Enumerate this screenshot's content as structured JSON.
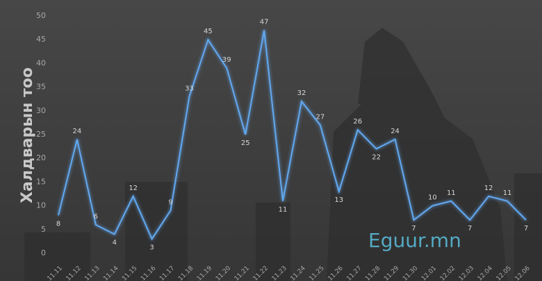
{
  "chart_data": {
    "type": "line",
    "y_label": "Халдварын тоо",
    "categories": [
      "11.11",
      "11.12",
      "11.13",
      "11.14",
      "11.15",
      "11.16",
      "11.17",
      "11.18",
      "11.19",
      "11.20",
      "11.21",
      "11.22",
      "11.23",
      "11.24",
      "11.25",
      "11.26",
      "11.27",
      "11.28",
      "11.29",
      "11.30",
      "12.01",
      "12.02",
      "12.03",
      "12.04",
      "12.05",
      "12.06"
    ],
    "values": [
      8,
      24,
      6,
      4,
      12,
      3,
      9,
      33,
      45,
      39,
      25,
      47,
      11,
      32,
      27,
      13,
      26,
      22,
      24,
      7,
      10,
      11,
      7,
      12,
      11,
      7
    ],
    "color": "#62a8f0",
    "ylim": [
      0,
      50
    ],
    "yticks": [
      0,
      5,
      10,
      15,
      20,
      25,
      30,
      35,
      40,
      45,
      50
    ],
    "grid": false,
    "data_labels": true
  },
  "watermark": "Eguur.mn"
}
